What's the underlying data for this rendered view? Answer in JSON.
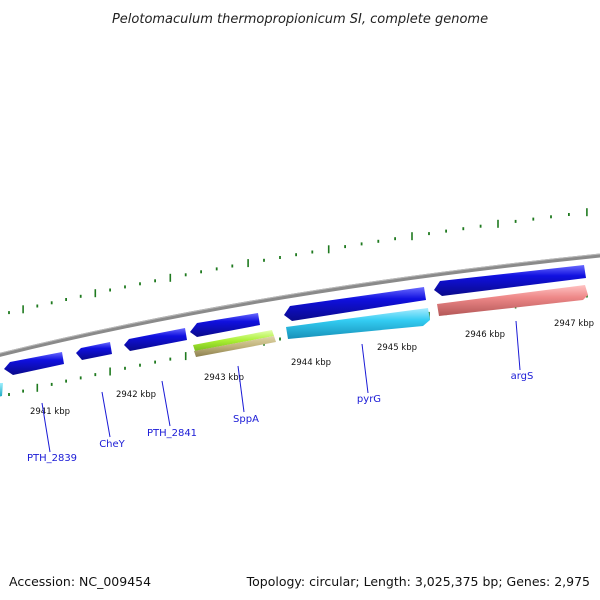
{
  "title": "Pelotomaculum thermopropionicum SI, complete genome",
  "footer": {
    "accession": "Accession: NC_009454",
    "summary": "Topology: circular; Length: 3,025,375 bp; Genes: 2,975"
  },
  "colors": {
    "backbone": "#8a8a8a",
    "tick": "#1f7a1f",
    "gene_label": "#1a1ad6",
    "forward_gene": "#1010e0",
    "reverse_gene_light_blue": "#33ccf2",
    "reverse_gene_salmon": "#ee8888",
    "reverse_gene_green": "#aaf033",
    "reverse_gene_olive": "#bfb27a",
    "partial_gene": "#26c0d8"
  },
  "scale": {
    "unit": "kbp",
    "labels": [
      "2941 kbp",
      "2942 kbp",
      "2943 kbp",
      "2944 kbp",
      "2945 kbp",
      "2946 kbp",
      "2947 kbp"
    ]
  },
  "genes": [
    {
      "name": "PTH_2839",
      "color": "forward_gene"
    },
    {
      "name": "CheY",
      "color": "forward_gene"
    },
    {
      "name": "PTH_2841",
      "color": "forward_gene"
    },
    {
      "name": "SppA",
      "color": "reverse_gene_green"
    },
    {
      "name": "pyrG",
      "color": "reverse_gene_light_blue"
    },
    {
      "name": "argS",
      "color": "reverse_gene_salmon"
    }
  ]
}
